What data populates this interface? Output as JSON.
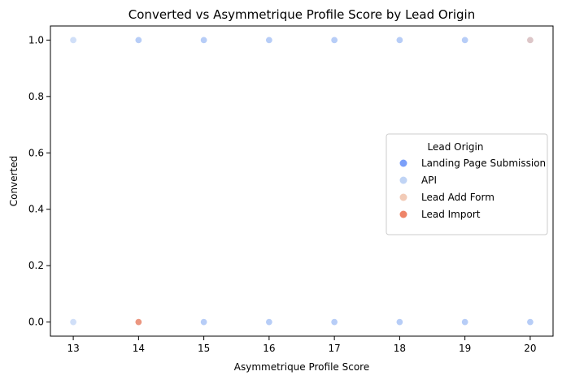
{
  "chart_data": {
    "type": "scatter",
    "title": "Converted vs Asymmetrique Profile Score by Lead Origin",
    "xlabel": "Asymmetrique Profile Score",
    "ylabel": "Converted",
    "xlim": [
      12.65,
      20.35
    ],
    "ylim": [
      -0.05,
      1.05
    ],
    "x_ticks": [
      13,
      14,
      15,
      16,
      17,
      18,
      19,
      20
    ],
    "y_ticks": [
      0.0,
      0.2,
      0.4,
      0.6,
      0.8,
      1.0
    ],
    "grid": false,
    "legend": {
      "title": "Lead Origin",
      "placement": "center-right"
    },
    "series": [
      {
        "name": "Landing Page Submission",
        "color": "#7b9ff9",
        "points": [
          [
            14,
            1
          ],
          [
            15,
            1
          ],
          [
            16,
            1
          ],
          [
            17,
            1
          ],
          [
            18,
            1
          ],
          [
            19,
            1
          ],
          [
            20,
            1
          ],
          [
            14,
            0
          ],
          [
            15,
            0
          ],
          [
            16,
            0
          ],
          [
            17,
            0
          ],
          [
            18,
            0
          ],
          [
            19,
            0
          ],
          [
            20,
            0
          ]
        ]
      },
      {
        "name": "API",
        "color": "#c0d4f5",
        "points": [
          [
            13,
            1
          ],
          [
            14,
            1
          ],
          [
            15,
            1
          ],
          [
            16,
            1
          ],
          [
            17,
            1
          ],
          [
            18,
            1
          ],
          [
            19,
            1
          ],
          [
            13,
            0
          ],
          [
            14,
            0
          ],
          [
            15,
            0
          ],
          [
            16,
            0
          ],
          [
            17,
            0
          ],
          [
            18,
            0
          ],
          [
            19,
            0
          ],
          [
            20,
            0
          ]
        ]
      },
      {
        "name": "Lead Add Form",
        "color": "#f2cbb7",
        "points": [
          [
            20,
            1
          ],
          [
            14,
            0
          ]
        ]
      },
      {
        "name": "Lead Import",
        "color": "#ee8468",
        "points": [
          [
            14,
            0
          ]
        ]
      }
    ]
  }
}
